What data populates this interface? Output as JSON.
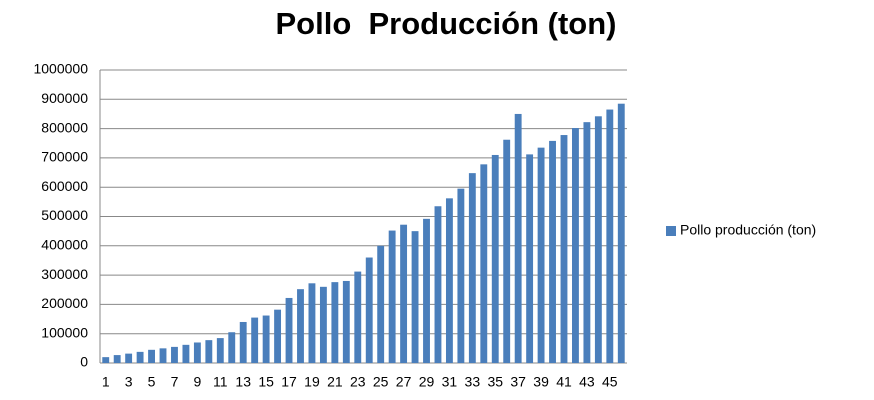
{
  "chart_data": {
    "type": "bar",
    "title": "Pollo  Producción (ton)",
    "categories": [
      "1",
      null,
      "3",
      null,
      "5",
      null,
      "7",
      null,
      "9",
      null,
      "11",
      null,
      "13",
      null,
      "15",
      null,
      "17",
      null,
      "19",
      null,
      "21",
      null,
      "23",
      null,
      "25",
      null,
      "27",
      null,
      "29",
      null,
      "31",
      null,
      "33",
      null,
      "35",
      null,
      "37",
      null,
      "39",
      null,
      "41",
      null,
      "43",
      null,
      "45",
      null
    ],
    "series": [
      {
        "name": "Pollo producción (ton)",
        "color": "#4a7ebb",
        "values": [
          20000,
          27000,
          32000,
          38000,
          45000,
          50000,
          55000,
          62000,
          70000,
          78000,
          85000,
          105000,
          140000,
          155000,
          162000,
          182000,
          222000,
          252000,
          272000,
          260000,
          276000,
          280000,
          312000,
          360000,
          400000,
          452000,
          472000,
          450000,
          492000,
          535000,
          562000,
          595000,
          648000,
          678000,
          710000,
          762000,
          850000,
          712000,
          735000,
          758000,
          778000,
          802000,
          822000,
          842000,
          865000,
          885000
        ]
      }
    ],
    "ylim": [
      0,
      1000000
    ],
    "yticks": [
      0,
      100000,
      200000,
      300000,
      400000,
      500000,
      600000,
      700000,
      800000,
      900000,
      1000000
    ],
    "grid": true,
    "legend": "right"
  }
}
